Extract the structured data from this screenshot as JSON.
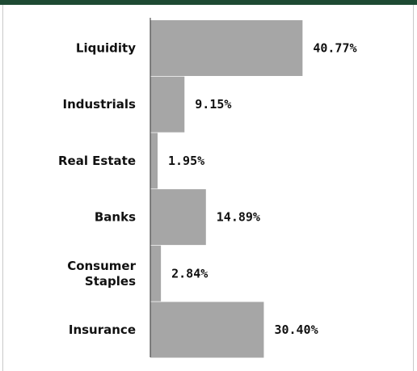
{
  "chart_data": {
    "type": "bar",
    "orientation": "horizontal",
    "title": "",
    "xlabel": "",
    "ylabel": "",
    "categories": [
      [
        "Liquidity"
      ],
      [
        "Industrials"
      ],
      [
        "Real Estate"
      ],
      [
        "Banks"
      ],
      [
        "Consumer",
        "Staples"
      ],
      [
        "Insurance"
      ]
    ],
    "values": [
      40.77,
      9.15,
      1.95,
      14.89,
      2.84,
      30.4
    ],
    "value_labels": [
      "40.77%",
      "9.15%",
      "1.95%",
      "14.89%",
      "2.84%",
      "30.40%"
    ],
    "bar_color": "#a6a6a6",
    "axis_color": "#333333",
    "grid": false
  }
}
